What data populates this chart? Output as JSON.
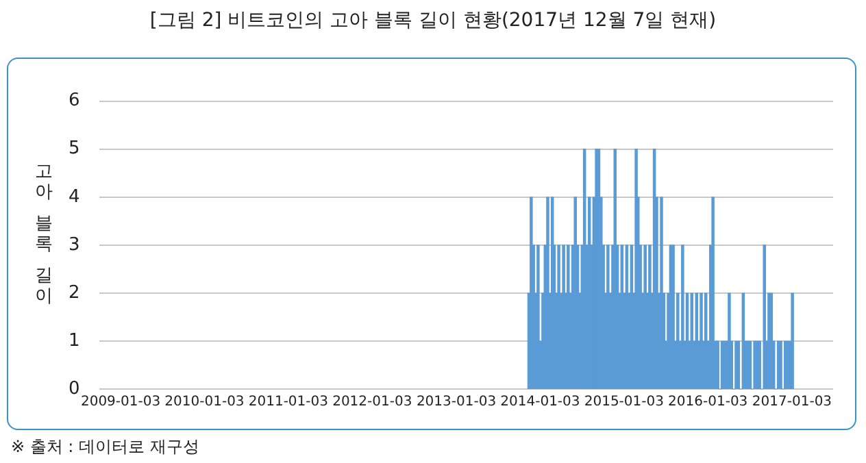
{
  "chart_data": {
    "type": "bar",
    "title": "[그림 2] 비트코인의 고아 블록 길이 현황(2017년 12월 7일 현재)",
    "ylabel": "고아 블록 길이",
    "annotations": [
      "※ 출처 : 데이터로 재구성"
    ],
    "color": "#5b9bd5",
    "grid": "y",
    "legend": false,
    "xlim": [
      "2008-10-01",
      "2017-07-01"
    ],
    "xticks": [
      "2009-01-03",
      "2010-01-03",
      "2011-01-03",
      "2012-01-03",
      "2013-01-03",
      "2014-01-03",
      "2015-01-03",
      "2016-01-03",
      "2017-01-03"
    ],
    "ylim": [
      0,
      6
    ],
    "yticks": [
      0,
      1,
      2,
      3,
      4,
      5,
      6
    ],
    "x": [
      "2013-11-15",
      "2013-11-25",
      "2013-12-05",
      "2013-12-15",
      "2013-12-25",
      "2014-01-05",
      "2014-01-15",
      "2014-01-25",
      "2014-02-05",
      "2014-02-15",
      "2014-02-25",
      "2014-03-05",
      "2014-03-15",
      "2014-03-25",
      "2014-04-05",
      "2014-04-15",
      "2014-04-25",
      "2014-05-05",
      "2014-05-15",
      "2014-05-25",
      "2014-06-05",
      "2014-06-15",
      "2014-06-25",
      "2014-07-05",
      "2014-07-15",
      "2014-07-25",
      "2014-08-05",
      "2014-08-15",
      "2014-08-25",
      "2014-09-05",
      "2014-09-15",
      "2014-09-25",
      "2014-10-05",
      "2014-10-15",
      "2014-10-25",
      "2014-11-05",
      "2014-11-15",
      "2014-11-25",
      "2014-12-05",
      "2014-12-15",
      "2014-12-25",
      "2015-01-05",
      "2015-01-15",
      "2015-01-25",
      "2015-02-05",
      "2015-02-15",
      "2015-02-25",
      "2015-03-05",
      "2015-03-15",
      "2015-03-25",
      "2015-04-05",
      "2015-04-15",
      "2015-04-25",
      "2015-05-05",
      "2015-05-15",
      "2015-05-25",
      "2015-06-05",
      "2015-06-15",
      "2015-06-25",
      "2015-07-05",
      "2015-07-15",
      "2015-07-25",
      "2015-08-05",
      "2015-08-15",
      "2015-08-25",
      "2015-09-05",
      "2015-09-15",
      "2015-09-25",
      "2015-10-05",
      "2015-10-15",
      "2015-10-25",
      "2015-11-05",
      "2015-11-15",
      "2015-11-25",
      "2015-12-05",
      "2015-12-15",
      "2015-12-25",
      "2016-01-05",
      "2016-01-15",
      "2016-01-25",
      "2016-02-05",
      "2016-02-15",
      "2016-02-25",
      "2016-03-05",
      "2016-03-15",
      "2016-03-25",
      "2016-04-05",
      "2016-04-15",
      "2016-04-25",
      "2016-05-05",
      "2016-05-15",
      "2016-05-25",
      "2016-06-05",
      "2016-06-15",
      "2016-06-25",
      "2016-07-05",
      "2016-07-15",
      "2016-07-25",
      "2016-08-05",
      "2016-08-15",
      "2016-08-25",
      "2016-09-05",
      "2016-09-15",
      "2016-09-25",
      "2016-10-05",
      "2016-10-15",
      "2016-10-25",
      "2016-11-05",
      "2016-11-15",
      "2016-11-25",
      "2016-12-05",
      "2016-12-15",
      "2016-12-25",
      "2017-01-05"
    ],
    "values": [
      2,
      4,
      3,
      2,
      3,
      1,
      2,
      3,
      4,
      2,
      4,
      3,
      2,
      3,
      2,
      3,
      2,
      3,
      2,
      3,
      4,
      3,
      2,
      3,
      5,
      3,
      4,
      3,
      4,
      5,
      5,
      4,
      3,
      2,
      3,
      2,
      3,
      5,
      3,
      2,
      3,
      2,
      3,
      2,
      3,
      2,
      5,
      4,
      3,
      2,
      3,
      2,
      3,
      2,
      5,
      4,
      2,
      4,
      2,
      1,
      2,
      3,
      3,
      1,
      2,
      1,
      3,
      1,
      2,
      1,
      2,
      1,
      2,
      1,
      2,
      1,
      2,
      1,
      3,
      4,
      1,
      1,
      0,
      1,
      1,
      1,
      2,
      1,
      0,
      1,
      1,
      0,
      2,
      1,
      1,
      1,
      0,
      1,
      1,
      1,
      0,
      3,
      1,
      2,
      2,
      1,
      0,
      1,
      1,
      0,
      1,
      1,
      1,
      2
    ]
  }
}
